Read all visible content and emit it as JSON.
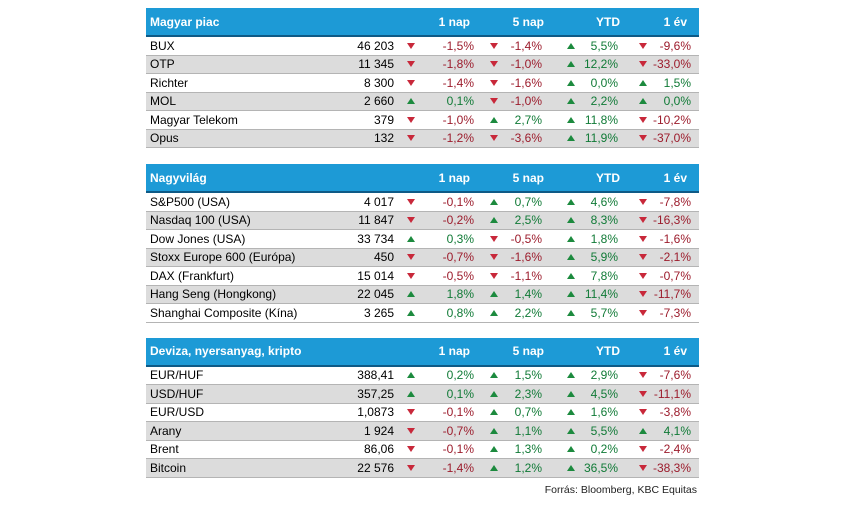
{
  "colors": {
    "header": "#1d9ad6",
    "negative": "#c8283a",
    "positive": "#1c8a3e"
  },
  "sections": [
    {
      "title": "Magyar piac",
      "cols": [
        "1 nap",
        "5 nap",
        "YTD",
        "1 év"
      ],
      "rows": [
        {
          "name": "BUX",
          "value": "46 203",
          "c": [
            "-1,5%",
            "-1,4%",
            "5,5%",
            "-9,6%"
          ],
          "dir": [
            "down",
            "down",
            "up",
            "down"
          ]
        },
        {
          "name": "OTP",
          "value": "11 345",
          "c": [
            "-1,8%",
            "-1,0%",
            "12,2%",
            "-33,0%"
          ],
          "dir": [
            "down",
            "down",
            "up",
            "down"
          ]
        },
        {
          "name": "Richter",
          "value": "8 300",
          "c": [
            "-1,4%",
            "-1,6%",
            "0,0%",
            "1,5%"
          ],
          "dir": [
            "down",
            "down",
            "up",
            "up"
          ]
        },
        {
          "name": "MOL",
          "value": "2 660",
          "c": [
            "0,1%",
            "-1,0%",
            "2,2%",
            "0,0%"
          ],
          "dir": [
            "up",
            "down",
            "up",
            "up"
          ]
        },
        {
          "name": "Magyar Telekom",
          "value": "379",
          "c": [
            "-1,0%",
            "2,7%",
            "11,8%",
            "-10,2%"
          ],
          "dir": [
            "down",
            "up",
            "up",
            "down"
          ]
        },
        {
          "name": "Opus",
          "value": "132",
          "c": [
            "-1,2%",
            "-3,6%",
            "11,9%",
            "-37,0%"
          ],
          "dir": [
            "down",
            "down",
            "up",
            "down"
          ]
        }
      ]
    },
    {
      "title": "Nagyvilág",
      "cols": [
        "1 nap",
        "5 nap",
        "YTD",
        "1 év"
      ],
      "rows": [
        {
          "name": "S&P500 (USA)",
          "value": "4 017",
          "c": [
            "-0,1%",
            "0,7%",
            "4,6%",
            "-7,8%"
          ],
          "dir": [
            "down",
            "up",
            "up",
            "down"
          ]
        },
        {
          "name": "Nasdaq 100 (USA)",
          "value": "11 847",
          "c": [
            "-0,2%",
            "2,5%",
            "8,3%",
            "-16,3%"
          ],
          "dir": [
            "down",
            "up",
            "up",
            "down"
          ]
        },
        {
          "name": "Dow Jones (USA)",
          "value": "33 734",
          "c": [
            "0,3%",
            "-0,5%",
            "1,8%",
            "-1,6%"
          ],
          "dir": [
            "up",
            "down",
            "up",
            "down"
          ]
        },
        {
          "name": "Stoxx Europe 600 (Európa)",
          "value": "450",
          "c": [
            "-0,7%",
            "-1,6%",
            "5,9%",
            "-2,1%"
          ],
          "dir": [
            "down",
            "down",
            "up",
            "down"
          ]
        },
        {
          "name": "DAX (Frankfurt)",
          "value": "15 014",
          "c": [
            "-0,5%",
            "-1,1%",
            "7,8%",
            "-0,7%"
          ],
          "dir": [
            "down",
            "down",
            "up",
            "down"
          ]
        },
        {
          "name": "Hang Seng (Hongkong)",
          "value": "22 045",
          "c": [
            "1,8%",
            "1,4%",
            "11,4%",
            "-11,7%"
          ],
          "dir": [
            "up",
            "up",
            "up",
            "down"
          ]
        },
        {
          "name": "Shanghai Composite (Kína)",
          "value": "3 265",
          "c": [
            "0,8%",
            "2,2%",
            "5,7%",
            "-7,3%"
          ],
          "dir": [
            "up",
            "up",
            "up",
            "down"
          ]
        }
      ]
    },
    {
      "title": "Deviza, nyersanyag, kripto",
      "cols": [
        "1 nap",
        "5 nap",
        "YTD",
        "1 év"
      ],
      "rows": [
        {
          "name": "EUR/HUF",
          "value": "388,41",
          "c": [
            "0,2%",
            "1,5%",
            "2,9%",
            "-7,6%"
          ],
          "dir": [
            "up",
            "up",
            "up",
            "down"
          ]
        },
        {
          "name": "USD/HUF",
          "value": "357,25",
          "c": [
            "0,1%",
            "2,3%",
            "4,5%",
            "-11,1%"
          ],
          "dir": [
            "up",
            "up",
            "up",
            "down"
          ]
        },
        {
          "name": "EUR/USD",
          "value": "1,0873",
          "c": [
            "-0,1%",
            "0,7%",
            "1,6%",
            "-3,8%"
          ],
          "dir": [
            "down",
            "up",
            "up",
            "down"
          ]
        },
        {
          "name": "Arany",
          "value": "1 924",
          "c": [
            "-0,7%",
            "1,1%",
            "5,5%",
            "4,1%"
          ],
          "dir": [
            "down",
            "up",
            "up",
            "up"
          ]
        },
        {
          "name": "Brent",
          "value": "86,06",
          "c": [
            "-0,1%",
            "1,3%",
            "0,2%",
            "-2,4%"
          ],
          "dir": [
            "down",
            "up",
            "up",
            "down"
          ]
        },
        {
          "name": "Bitcoin",
          "value": "22 576",
          "c": [
            "-1,4%",
            "1,2%",
            "36,5%",
            "-38,3%"
          ],
          "dir": [
            "down",
            "up",
            "up",
            "down"
          ]
        }
      ]
    }
  ],
  "source": "Forrás: Bloomberg, KBC Equitas"
}
